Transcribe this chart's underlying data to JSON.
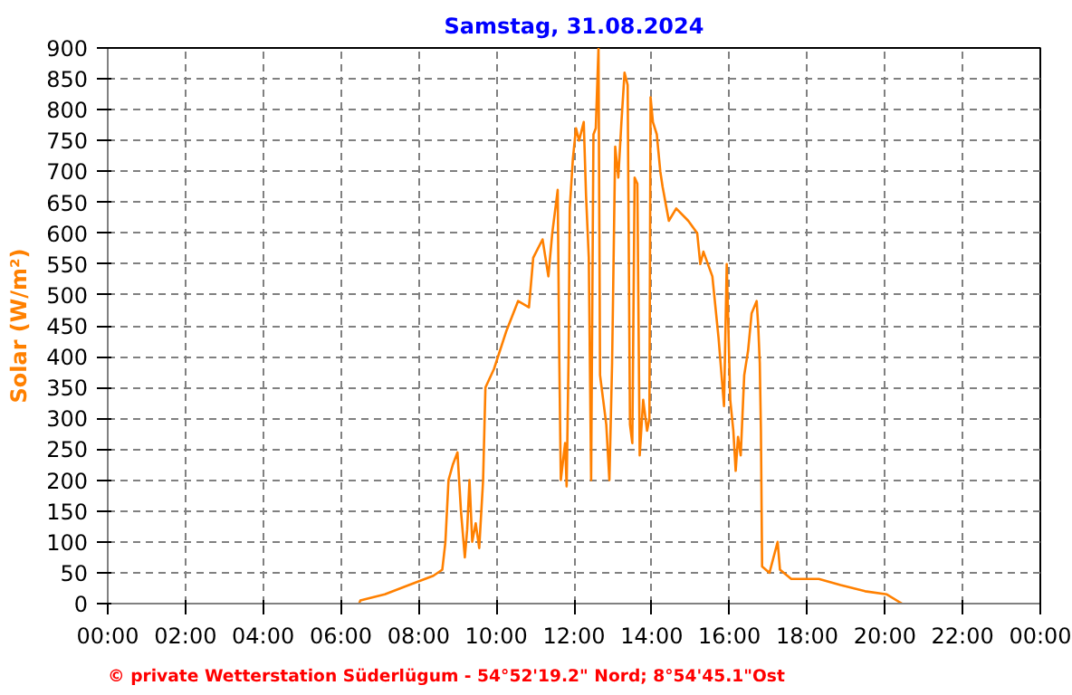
{
  "chart_data": {
    "type": "line",
    "title": "Samstag, 31.08.2024",
    "ylabel": "Solar (W/m²)",
    "annotations": [
      "© private Wetterstation Süderlügum - 54°52'19.2\" Nord; 8°54'45.1\"Ost"
    ],
    "x": [
      6.47,
      6.5,
      7.13,
      7.75,
      8.38,
      8.61,
      8.69,
      8.77,
      8.88,
      9.0,
      9.09,
      9.19,
      9.25,
      9.31,
      9.38,
      9.47,
      9.56,
      9.66,
      9.72,
      9.94,
      10.25,
      10.56,
      10.84,
      10.95,
      11.19,
      11.34,
      11.44,
      11.58,
      11.62,
      11.66,
      11.77,
      11.81,
      11.86,
      11.89,
      11.97,
      12.05,
      12.13,
      12.25,
      12.31,
      12.38,
      12.44,
      12.5,
      12.56,
      12.63,
      12.67,
      12.75,
      12.83,
      12.91,
      12.98,
      13.06,
      13.14,
      13.22,
      13.3,
      13.38,
      13.44,
      13.5,
      13.56,
      13.63,
      13.69,
      13.78,
      13.88,
      13.94,
      13.97,
      14.03,
      14.13,
      14.22,
      14.28,
      14.44,
      14.63,
      14.94,
      15.17,
      15.25,
      15.33,
      15.56,
      15.72,
      15.86,
      15.93,
      16.02,
      16.1,
      16.16,
      16.22,
      16.29,
      16.38,
      16.48,
      16.57,
      16.7,
      16.74,
      16.78,
      16.81,
      16.84,
      17.03,
      17.24,
      17.3,
      17.59,
      18.0,
      18.3,
      18.86,
      19.49,
      20.05,
      20.44
    ],
    "series": [
      {
        "color": "#ff8000",
        "values": [
          0,
          5,
          15,
          30,
          45,
          55,
          100,
          200,
          225,
          245,
          150,
          75,
          120,
          200,
          100,
          130,
          90,
          200,
          350,
          380,
          440,
          490,
          480,
          560,
          590,
          530,
          600,
          670,
          400,
          200,
          260,
          190,
          400,
          640,
          720,
          770,
          750,
          780,
          660,
          560,
          200,
          760,
          770,
          900,
          370,
          330,
          290,
          200,
          390,
          740,
          690,
          780,
          860,
          840,
          290,
          260,
          690,
          680,
          240,
          330,
          280,
          300,
          820,
          780,
          760,
          700,
          675,
          620,
          640,
          620,
          600,
          550,
          570,
          530,
          430,
          320,
          550,
          330,
          280,
          215,
          270,
          240,
          370,
          410,
          470,
          490,
          450,
          390,
          280,
          60,
          50,
          100,
          55,
          40,
          40,
          40,
          30,
          20,
          15,
          0
        ]
      }
    ],
    "xlim": [
      0,
      24
    ],
    "ylim": [
      0,
      900
    ],
    "xticks": [
      {
        "value": 0,
        "label": "00:00"
      },
      {
        "value": 2,
        "label": "02:00"
      },
      {
        "value": 4,
        "label": "04:00"
      },
      {
        "value": 6,
        "label": "06:00"
      },
      {
        "value": 8,
        "label": "08:00"
      },
      {
        "value": 10,
        "label": "10:00"
      },
      {
        "value": 12,
        "label": "12:00"
      },
      {
        "value": 14,
        "label": "14:00"
      },
      {
        "value": 16,
        "label": "16:00"
      },
      {
        "value": 18,
        "label": "18:00"
      },
      {
        "value": 20,
        "label": "20:00"
      },
      {
        "value": 22,
        "label": "22:00"
      },
      {
        "value": 24,
        "label": "00:00"
      }
    ],
    "yticks": [
      0,
      50,
      100,
      150,
      200,
      250,
      300,
      350,
      400,
      450,
      500,
      550,
      600,
      650,
      700,
      750,
      800,
      850,
      900
    ],
    "grid": true,
    "line_style": "solid",
    "marker": "none"
  }
}
